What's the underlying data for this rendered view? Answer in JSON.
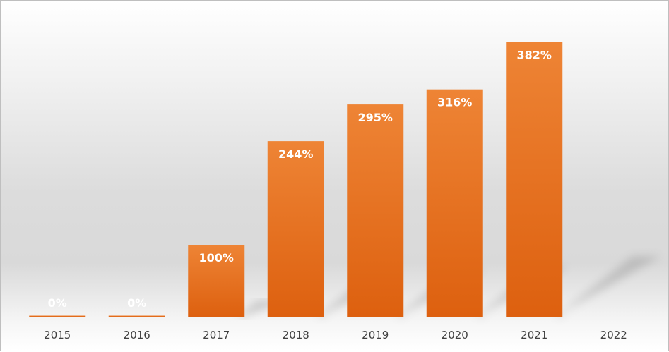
{
  "chart_data": {
    "type": "bar",
    "title": "",
    "xlabel": "",
    "ylabel": "",
    "categories": [
      "2015",
      "2016",
      "2017",
      "2018",
      "2019",
      "2020",
      "2021",
      "2022"
    ],
    "values": [
      0,
      0,
      100,
      244,
      295,
      316,
      382,
      null
    ],
    "data_labels": [
      "0%",
      "0%",
      "100%",
      "244%",
      "295%",
      "316%",
      "382%",
      ""
    ],
    "ylim": [
      0,
      400
    ],
    "grid": false,
    "legend": "none",
    "bar_color_top": "#ee8435",
    "bar_color_bottom": "#dd600f"
  }
}
